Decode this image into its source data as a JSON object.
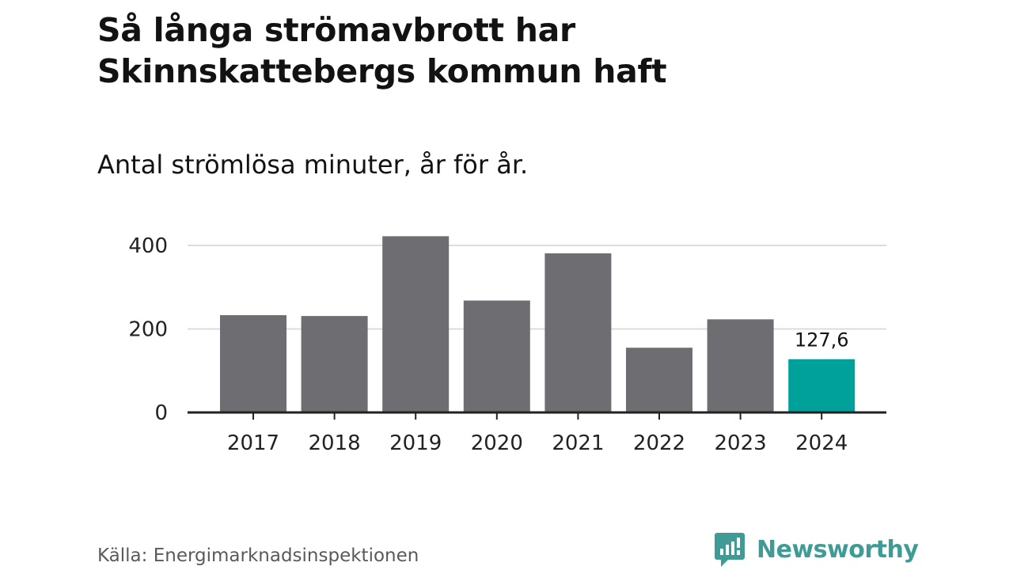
{
  "header": {
    "title_line1": "Så långa strömavbrott har",
    "title_line2": "Skinnskattebergs kommun haft",
    "subtitle": "Antal strömlösa minuter, år för år."
  },
  "chart_data": {
    "type": "bar",
    "categories": [
      "2017",
      "2018",
      "2019",
      "2020",
      "2021",
      "2022",
      "2023",
      "2024"
    ],
    "values": [
      233,
      231,
      422,
      268,
      381,
      155,
      223,
      127.6
    ],
    "highlight_index": 7,
    "highlight_label": "127,6",
    "ylim": [
      0,
      430
    ],
    "yticks": [
      0,
      200,
      400
    ],
    "ytick_labels": [
      "0",
      "200",
      "400"
    ],
    "title": "Så långa strömavbrott har Skinnskattebergs kommun haft",
    "xlabel": "",
    "ylabel": "",
    "grid": true,
    "colors": {
      "bar": "#6e6d72",
      "highlight": "#00a19a",
      "grid": "#dcdcdc",
      "axis": "#222222"
    }
  },
  "footer": {
    "source": "Källa: Energimarknadsinspektionen",
    "brand": "Newsworthy",
    "brand_color": "#3f9b95"
  }
}
